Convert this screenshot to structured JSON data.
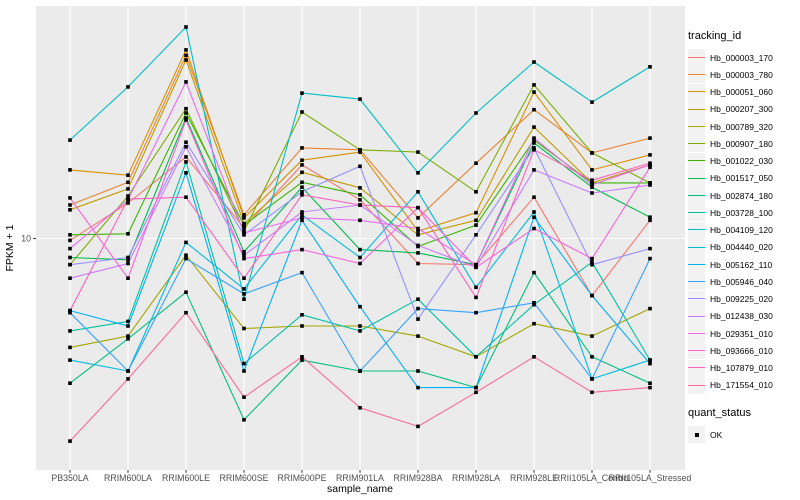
{
  "style": {
    "panel_bg": "#EBEBEB",
    "grid_color": "#FFFFFF",
    "tick_color": "#333333",
    "tick_label_color": "#4D4D4D",
    "point_color": "#000000",
    "legend_key_bg": "#F2F2F2"
  },
  "y_axis": {
    "title": "FPKM + 1",
    "tick_label": "10"
  },
  "x_axis": {
    "title": "sample_name"
  },
  "legend": {
    "title": "tracking_id",
    "quant_title": "quant_status",
    "quant_ok_label": "OK"
  },
  "chart_data": {
    "type": "line",
    "title": "",
    "xlabel": "sample_name",
    "ylabel": "FPKM + 1",
    "y_scale": "log10",
    "y_ticks": [
      10
    ],
    "ylim": [
      0.9,
      115
    ],
    "grid": true,
    "legend_position": "right",
    "point_marker": {
      "shape": "filled-square",
      "color": "#000000",
      "meaning": "quant_status OK"
    },
    "categories": [
      "PB350LA",
      "RRIM600LA",
      "RRIM600LE",
      "RRIM600SE",
      "RRIM600PE",
      "RRIM901LA",
      "RRIM928BA",
      "RRIM928LA",
      "RRIM928LE",
      "RRII105LA_Control",
      "RRII105LA_Stressed"
    ],
    "series": [
      {
        "name": "Hb_000003_170",
        "color": "#F8766D",
        "values": [
          9.8,
          14.5,
          23.5,
          11.2,
          21.6,
          15,
          7.7,
          7.6,
          15.4,
          5.5,
          12.1
        ]
      },
      {
        "name": "Hb_000003_780",
        "color": "#EA8331",
        "values": [
          14.2,
          18,
          68,
          12.8,
          25.8,
          25.3,
          12.4,
          22,
          38.5,
          24.5,
          28.6
        ]
      },
      {
        "name": "Hb_000051_060",
        "color": "#D89000",
        "values": [
          20.5,
          19.4,
          72,
          12.4,
          22.7,
          24.7,
          10.8,
          13.1,
          46.3,
          20.5,
          24
        ]
      },
      {
        "name": "Hb_000207_300",
        "color": "#C09B00",
        "values": [
          13.5,
          16.8,
          64.8,
          11.7,
          20,
          17,
          10.4,
          12.1,
          32.1,
          17.9,
          21.6
        ]
      },
      {
        "name": "Hb_000789_320",
        "color": "#A3A500",
        "values": [
          3.2,
          3.6,
          8.4,
          3.9,
          4.0,
          4.0,
          3.6,
          2.9,
          4.1,
          3.6,
          4.8
        ]
      },
      {
        "name": "Hb_000907_180",
        "color": "#7CAE00",
        "values": [
          7.6,
          15.6,
          38.9,
          10.8,
          37.6,
          25.3,
          24.7,
          16.3,
          49.9,
          24.5,
          17.9
        ]
      },
      {
        "name": "Hb_001022_030",
        "color": "#39B600",
        "values": [
          10.4,
          10.5,
          37.2,
          11.5,
          18,
          15.8,
          9.2,
          11.5,
          28,
          17.9,
          17.9
        ]
      },
      {
        "name": "Hb_001517_050",
        "color": "#00BB4E",
        "values": [
          8.2,
          8.0,
          35.3,
          8.7,
          17.1,
          8.9,
          8.6,
          7.6,
          27.2,
          17.1,
          12.5
        ]
      },
      {
        "name": "Hb_002874_180",
        "color": "#00BF7D",
        "values": [
          2.2,
          3.5,
          5.7,
          1.5,
          2.8,
          2.5,
          2.5,
          2.1,
          7.0,
          2.9,
          2.2
        ]
      },
      {
        "name": "Hb_003728_100",
        "color": "#00C1A3",
        "values": [
          3.8,
          4.2,
          22.3,
          2.7,
          4.5,
          3.8,
          5.3,
          2.9,
          5.0,
          7.8,
          2.8
        ]
      },
      {
        "name": "Hb_004109_120",
        "color": "#00BFC4",
        "values": [
          28,
          48.9,
          91.5,
          5.3,
          45.8,
          43,
          19.9,
          37.2,
          63.4,
          41.7,
          60.3
        ]
      },
      {
        "name": "Hb_004440_020",
        "color": "#00BAE0",
        "values": [
          2.8,
          2.5,
          9.6,
          5.9,
          12.8,
          8.2,
          16.3,
          6.0,
          13.2,
          2.3,
          2.8
        ]
      },
      {
        "name": "Hb_005162_110",
        "color": "#00B0F6",
        "values": [
          4.7,
          4.0,
          19.9,
          2.5,
          12.1,
          4.9,
          2.1,
          2.1,
          12.5,
          5.5,
          2.7
        ]
      },
      {
        "name": "Hb_005946_040",
        "color": "#35A2FF",
        "values": [
          4.6,
          2.5,
          8.1,
          5.6,
          7.0,
          2.5,
          4.8,
          4.6,
          5.1,
          2.3,
          8.1
        ]
      },
      {
        "name": "Hb_009225_020",
        "color": "#9590FF",
        "values": [
          7.6,
          8.2,
          27.4,
          10.4,
          16.3,
          21.3,
          4.3,
          10.4,
          25.8,
          7.6,
          9.0
        ]
      },
      {
        "name": "Hb_012438_030",
        "color": "#C77CFF",
        "values": [
          6.6,
          7.7,
          26.1,
          8.4,
          13.2,
          14.2,
          9.3,
          7.4,
          20.5,
          16.1,
          17.5
        ]
      },
      {
        "name": "Hb_029351_010",
        "color": "#E76BF3",
        "values": [
          9.0,
          15,
          51.5,
          10.6,
          12.4,
          12.1,
          11.1,
          7.6,
          28.6,
          17.5,
          21.6
        ]
      },
      {
        "name": "Hb_093666_010",
        "color": "#FA62DB",
        "values": [
          15.3,
          6.6,
          34.6,
          8.1,
          8.9,
          7.7,
          13.8,
          7.4,
          11.1,
          8.1,
          21.1
        ]
      },
      {
        "name": "Hb_107879_010",
        "color": "#FF62BC",
        "values": [
          4.7,
          15.1,
          15.4,
          6.6,
          15.8,
          14.2,
          13.8,
          5.4,
          25.3,
          18.4,
          22
        ]
      },
      {
        "name": "Hb_171554_010",
        "color": "#FF6A98",
        "values": [
          1.2,
          2.3,
          4.6,
          1.9,
          2.9,
          1.7,
          1.4,
          2.0,
          2.9,
          2.0,
          2.1
        ]
      }
    ]
  }
}
